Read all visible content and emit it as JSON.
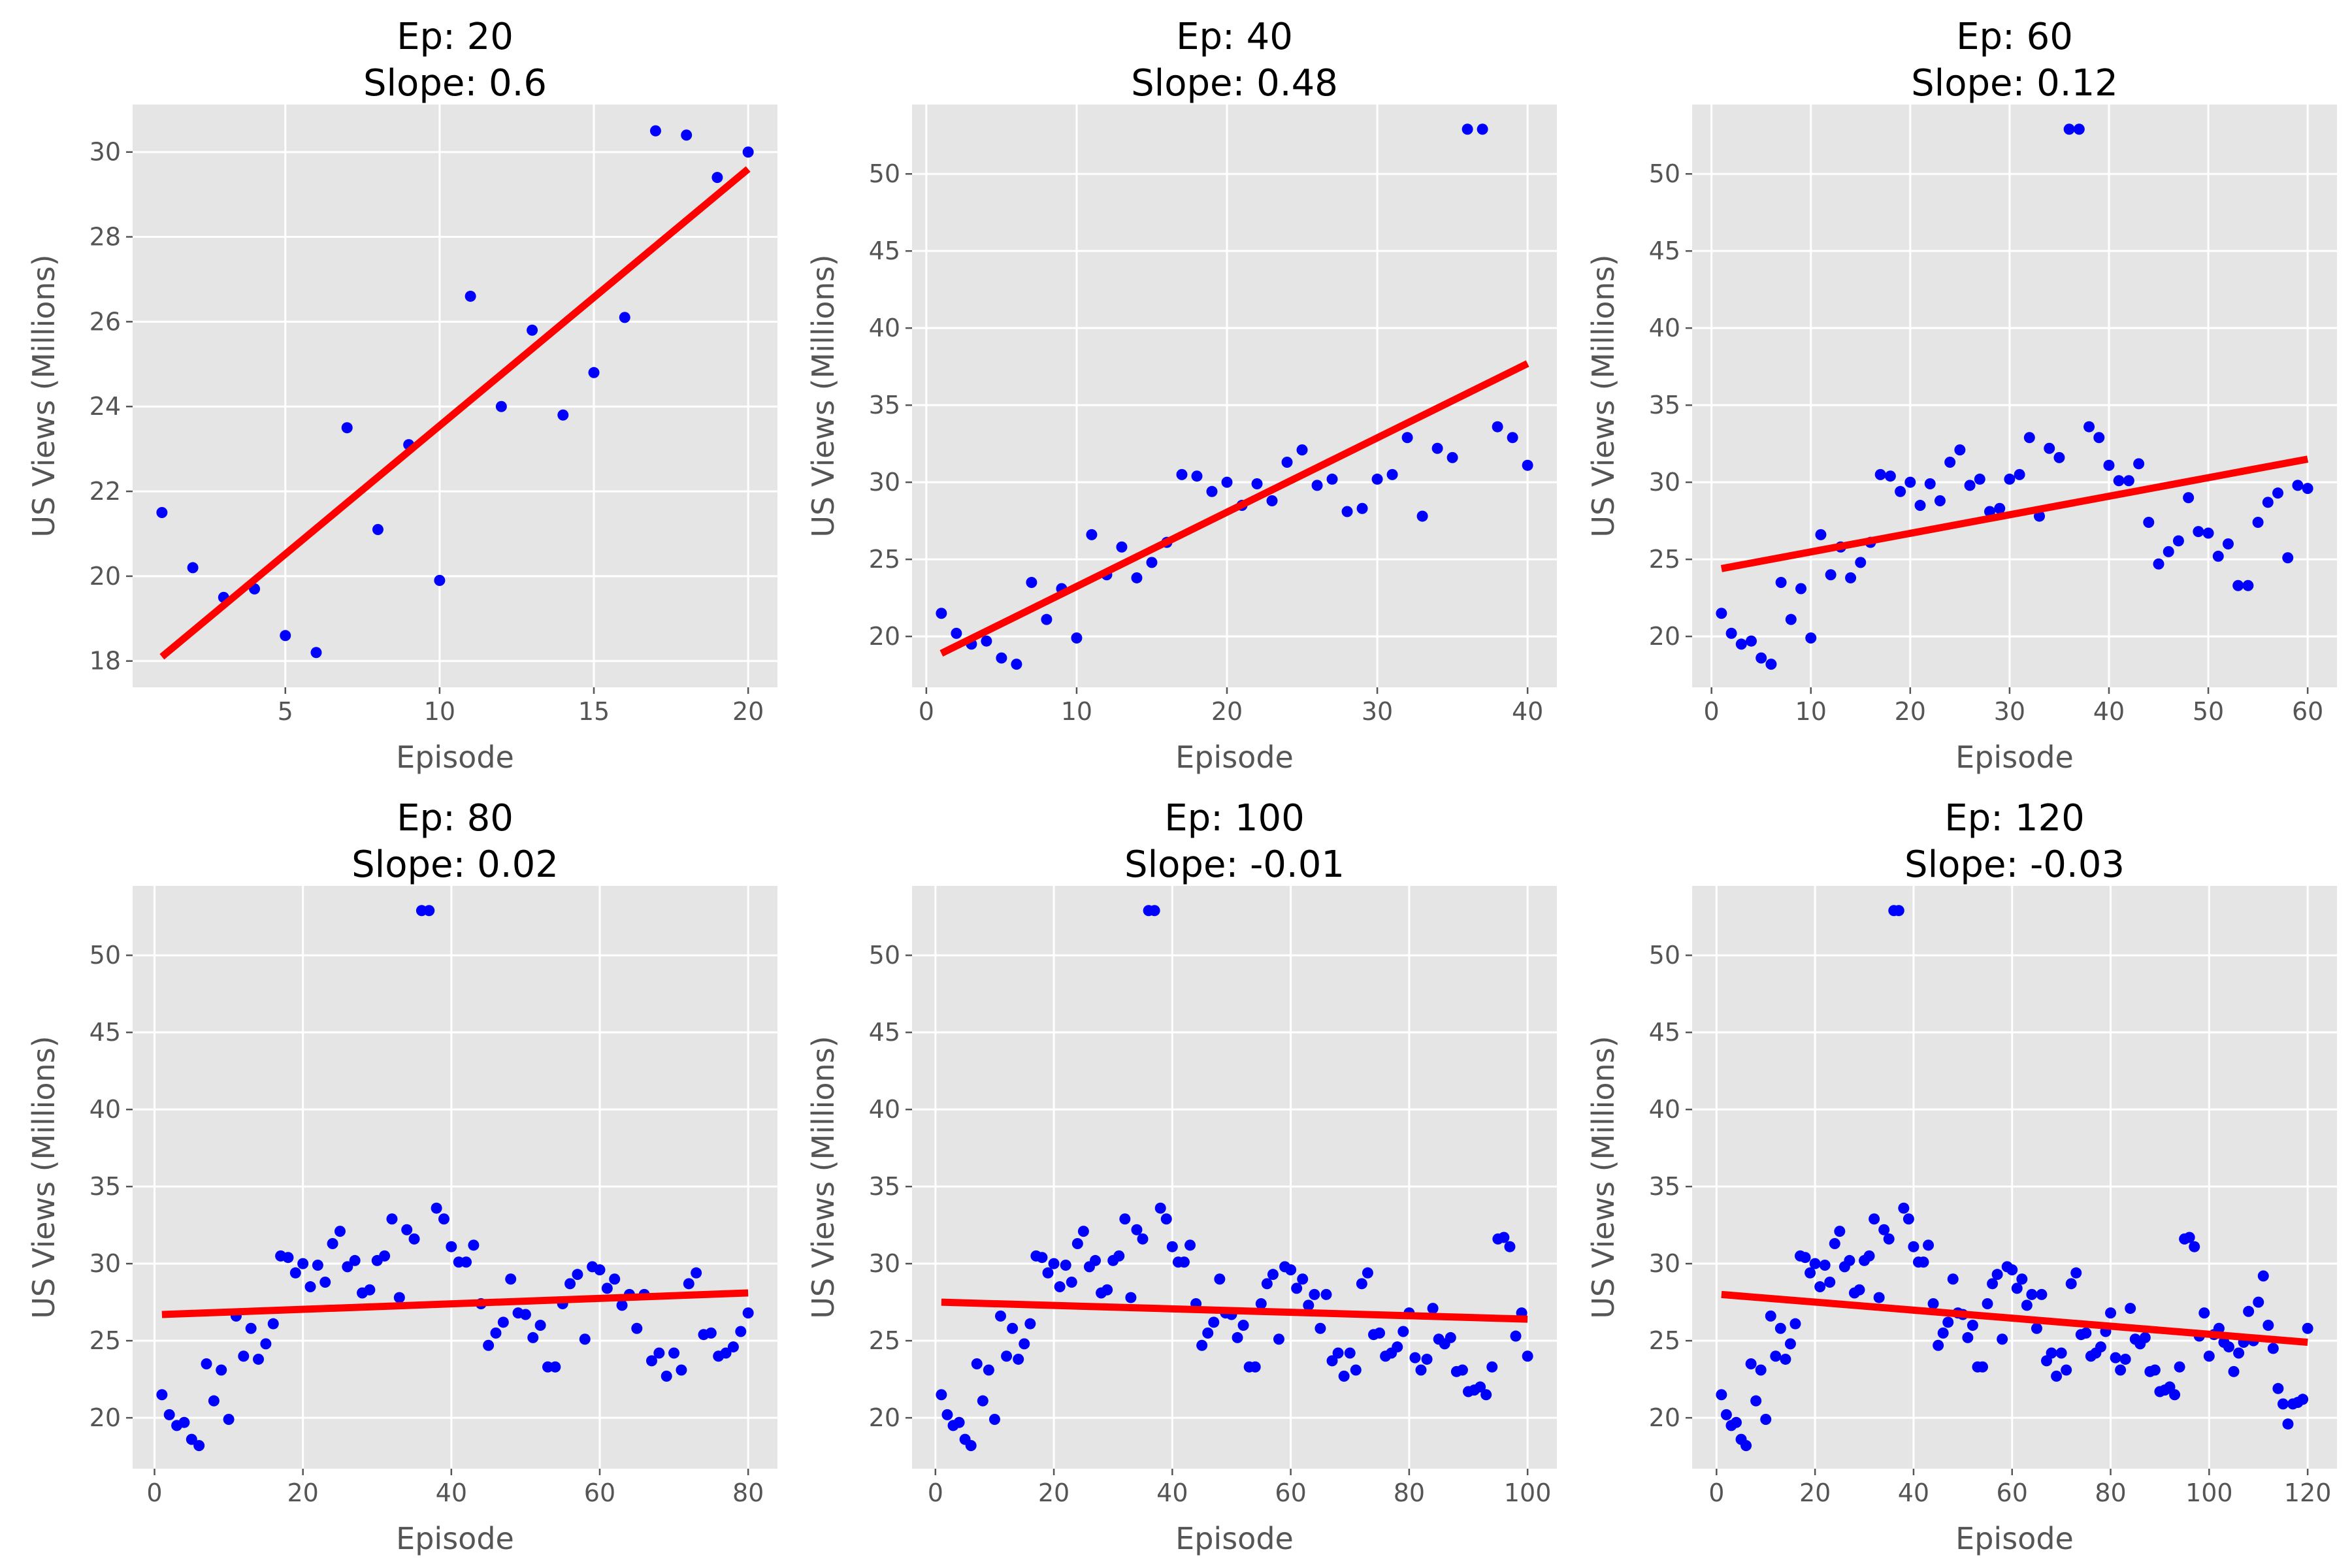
{
  "style": {
    "point_color": "#0000ff",
    "fit_color": "#ff0000",
    "axes_bg": "#e5e5e5",
    "grid_color": "#ffffff"
  },
  "views": [
    21.5,
    20.2,
    19.5,
    19.7,
    18.6,
    18.2,
    23.5,
    21.1,
    23.1,
    19.9,
    26.6,
    24.0,
    25.8,
    23.8,
    24.8,
    26.1,
    30.5,
    30.4,
    29.4,
    30.0,
    28.5,
    29.9,
    28.8,
    31.3,
    32.1,
    29.8,
    30.2,
    28.1,
    28.3,
    30.2,
    30.5,
    32.9,
    27.8,
    32.2,
    31.6,
    52.9,
    52.9,
    33.6,
    32.9,
    31.1,
    30.1,
    30.1,
    31.2,
    27.4,
    24.7,
    25.5,
    26.2,
    29.0,
    26.8,
    26.7,
    25.2,
    26.0,
    23.3,
    23.3,
    27.4,
    28.7,
    29.3,
    25.1,
    29.8,
    29.6,
    28.4,
    29.0,
    27.3,
    28.0,
    25.8,
    28.0,
    23.7,
    24.2,
    22.7,
    24.2,
    23.1,
    28.7,
    29.4,
    25.4,
    25.5,
    24.0,
    24.2,
    24.6,
    25.6,
    26.8,
    23.9,
    23.1,
    23.8,
    27.1,
    25.1,
    24.8,
    25.2,
    23.0,
    23.1,
    21.7,
    21.8,
    22.0,
    21.5,
    23.3,
    31.6,
    31.7,
    31.1,
    25.3,
    26.8,
    24.0,
    25.4,
    25.8,
    24.9,
    24.6,
    23.0,
    24.2,
    24.9,
    26.9,
    25.0,
    27.5,
    29.2,
    26.0,
    24.5,
    21.9,
    20.9,
    19.6,
    20.9,
    21.0,
    21.2,
    25.8
  ],
  "chart_data": [
    {
      "type": "scatter",
      "title": "Ep: 20\nSlope: 0.6",
      "xlabel": "Episode",
      "ylabel": "US Views (Millions)",
      "n": 20,
      "xlim": [
        0.05,
        20.95
      ],
      "ylim": [
        17.38,
        31.12
      ],
      "xticks": [
        5,
        10,
        15,
        20
      ],
      "yticks": [
        18,
        20,
        22,
        24,
        26,
        28,
        30
      ],
      "fit": {
        "x": [
          1,
          20
        ],
        "y": [
          18.1,
          29.6
        ]
      }
    },
    {
      "type": "scatter",
      "title": "Ep: 40\nSlope: 0.48",
      "xlabel": "Episode",
      "ylabel": "US Views (Millions)",
      "n": 40,
      "xlim": [
        -0.95,
        41.95
      ],
      "ylim": [
        16.7,
        54.5
      ],
      "xticks": [
        0,
        10,
        20,
        30,
        40
      ],
      "yticks": [
        20,
        25,
        30,
        35,
        40,
        45,
        50
      ],
      "fit": {
        "x": [
          1,
          40
        ],
        "y": [
          18.9,
          37.7
        ]
      }
    },
    {
      "type": "scatter",
      "title": "Ep: 60\nSlope: 0.12",
      "xlabel": "Episode",
      "ylabel": "US Views (Millions)",
      "n": 60,
      "xlim": [
        -1.95,
        62.95
      ],
      "ylim": [
        16.7,
        54.5
      ],
      "xticks": [
        0,
        10,
        20,
        30,
        40,
        50,
        60
      ],
      "yticks": [
        20,
        25,
        30,
        35,
        40,
        45,
        50
      ],
      "fit": {
        "x": [
          1,
          60
        ],
        "y": [
          24.4,
          31.5
        ]
      }
    },
    {
      "type": "scatter",
      "title": "Ep: 80\nSlope: 0.02",
      "xlabel": "Episode",
      "ylabel": "US Views (Millions)",
      "n": 80,
      "xlim": [
        -2.95,
        83.95
      ],
      "ylim": [
        16.7,
        54.5
      ],
      "xticks": [
        0,
        20,
        40,
        60,
        80
      ],
      "yticks": [
        20,
        25,
        30,
        35,
        40,
        45,
        50
      ],
      "fit": {
        "x": [
          1,
          80
        ],
        "y": [
          26.7,
          28.1
        ]
      }
    },
    {
      "type": "scatter",
      "title": "Ep: 100\nSlope: -0.01",
      "xlabel": "Episode",
      "ylabel": "US Views (Millions)",
      "n": 100,
      "xlim": [
        -3.95,
        104.95
      ],
      "ylim": [
        16.7,
        54.5
      ],
      "xticks": [
        0,
        20,
        40,
        60,
        80,
        100
      ],
      "yticks": [
        20,
        25,
        30,
        35,
        40,
        45,
        50
      ],
      "fit": {
        "x": [
          1,
          100
        ],
        "y": [
          27.5,
          26.4
        ]
      }
    },
    {
      "type": "scatter",
      "title": "Ep: 120\nSlope: -0.03",
      "xlabel": "Episode",
      "ylabel": "US Views (Millions)",
      "n": 120,
      "xlim": [
        -4.95,
        125.95
      ],
      "ylim": [
        16.7,
        54.5
      ],
      "xticks": [
        0,
        20,
        40,
        60,
        80,
        100,
        120
      ],
      "yticks": [
        20,
        25,
        30,
        35,
        40,
        45,
        50
      ],
      "fit": {
        "x": [
          1,
          120
        ],
        "y": [
          28.0,
          24.9
        ]
      }
    }
  ]
}
